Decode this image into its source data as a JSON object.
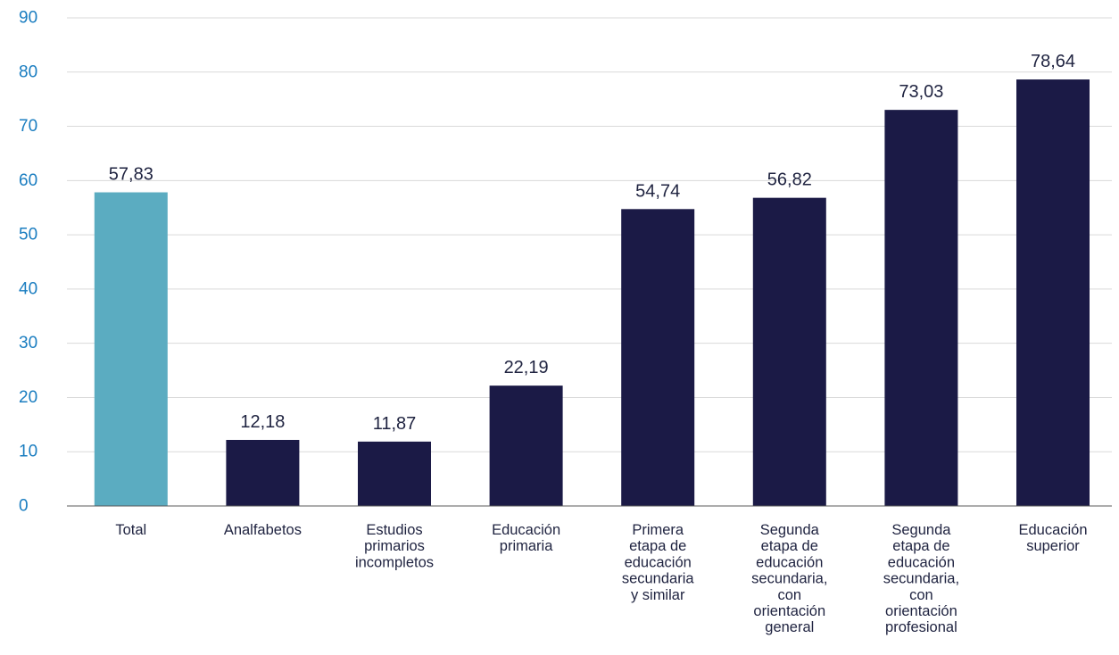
{
  "chart_data": {
    "type": "bar",
    "categories": [
      [
        "Total"
      ],
      [
        "Analfabetos"
      ],
      [
        "Estudios",
        "primarios",
        "incompletos"
      ],
      [
        "Educación",
        "primaria"
      ],
      [
        "Primera",
        "etapa de",
        "educación",
        "secundaria",
        "y similar"
      ],
      [
        "Segunda",
        "etapa de",
        "educación",
        "secundaria,",
        "con",
        "orientación",
        "general"
      ],
      [
        "Segunda",
        "etapa de",
        "educación",
        "secundaria,",
        "con",
        "orientación",
        "profesional"
      ],
      [
        "Educación",
        "superior"
      ]
    ],
    "values": [
      57.83,
      12.18,
      11.87,
      22.19,
      54.74,
      56.82,
      73.03,
      78.64
    ],
    "data_labels": [
      "57,83",
      "12,18",
      "11,87",
      "22,19",
      "54,74",
      "56,82",
      "73,03",
      "78,64"
    ],
    "highlight_index": 0,
    "ylim": [
      0,
      90
    ],
    "yticks": [
      0,
      10,
      20,
      30,
      40,
      50,
      60,
      70,
      80,
      90
    ],
    "grid": true,
    "title": "",
    "xlabel": "",
    "ylabel": "",
    "colors": {
      "highlight": "#5bacc1",
      "bar": "#1b1a46",
      "ytick": "#1a7dc0",
      "text": "#1f2340",
      "grid": "#d9d9d9"
    }
  }
}
